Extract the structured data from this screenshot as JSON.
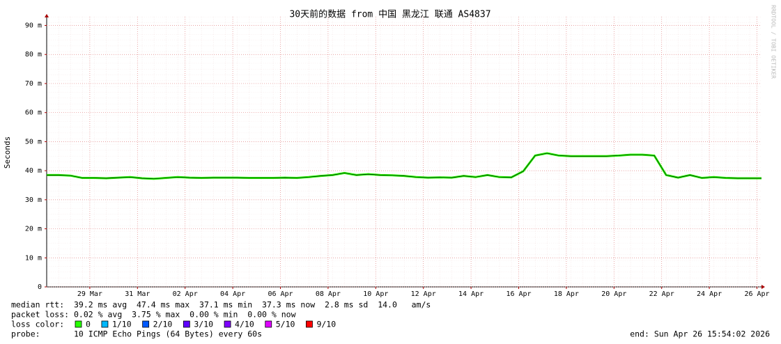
{
  "chart_data": {
    "type": "line",
    "title": "30天前的数据 from 中国 黑龙江 联通 AS4837",
    "y_label": "Seconds",
    "watermark": "RRDTOOL / TOBI OETIKER",
    "xlim": [
      0,
      30
    ],
    "xticks": [
      {
        "value": 1.81,
        "label": "29 Mar"
      },
      {
        "value": 3.81,
        "label": "31 Mar"
      },
      {
        "value": 5.81,
        "label": "02 Apr"
      },
      {
        "value": 7.81,
        "label": "04 Apr"
      },
      {
        "value": 9.81,
        "label": "06 Apr"
      },
      {
        "value": 11.81,
        "label": "08 Apr"
      },
      {
        "value": 13.81,
        "label": "10 Apr"
      },
      {
        "value": 15.81,
        "label": "12 Apr"
      },
      {
        "value": 17.81,
        "label": "14 Apr"
      },
      {
        "value": 19.81,
        "label": "16 Apr"
      },
      {
        "value": 21.81,
        "label": "18 Apr"
      },
      {
        "value": 23.81,
        "label": "20 Apr"
      },
      {
        "value": 25.81,
        "label": "22 Apr"
      },
      {
        "value": 27.81,
        "label": "24 Apr"
      },
      {
        "value": 29.81,
        "label": "26 Apr"
      }
    ],
    "ylim": [
      0,
      0.093
    ],
    "yticks": [
      0,
      {
        "value": 0.01,
        "label": "10 m"
      },
      {
        "value": 0.02,
        "label": "20 m"
      },
      {
        "value": 0.03,
        "label": "30 m"
      },
      {
        "value": 0.04,
        "label": "40 m"
      },
      {
        "value": 0.05,
        "label": "50 m"
      },
      {
        "value": 0.06,
        "label": "60 m"
      },
      {
        "value": 0.07,
        "label": "70 m"
      },
      {
        "value": 0.08,
        "label": "80 m"
      },
      {
        "value": 0.09,
        "label": "90 m"
      }
    ],
    "grid": true,
    "x": [
      0,
      0.5,
      1,
      1.5,
      2,
      2.5,
      3,
      3.5,
      4,
      4.5,
      5,
      5.5,
      6,
      6.5,
      7,
      7.5,
      8,
      8.5,
      9,
      9.5,
      10,
      10.5,
      11,
      11.5,
      12,
      12.5,
      13,
      13.5,
      14,
      14.5,
      15,
      15.5,
      16,
      16.5,
      17,
      17.5,
      18,
      18.5,
      19,
      19.5,
      20,
      20.5,
      21,
      21.5,
      22,
      22.5,
      23,
      23.5,
      24,
      24.5,
      25,
      25.5,
      26,
      26.5,
      27,
      27.5,
      28,
      28.5,
      29,
      29.5,
      30
    ],
    "series": [
      {
        "color": "#26ff00",
        "values": [
          0.0385,
          0.0385,
          0.0383,
          0.0375,
          0.0375,
          0.0374,
          0.0376,
          0.0378,
          0.0374,
          0.0372,
          0.0375,
          0.0378,
          0.0376,
          0.0375,
          0.0376,
          0.0376,
          0.0376,
          0.0375,
          0.0375,
          0.0375,
          0.0376,
          0.0375,
          0.0378,
          0.0382,
          0.0385,
          0.0392,
          0.0385,
          0.0388,
          0.0385,
          0.0384,
          0.0382,
          0.0378,
          0.0376,
          0.0377,
          0.0376,
          0.0382,
          0.0378,
          0.0385,
          0.0378,
          0.0377,
          0.0398,
          0.0452,
          0.046,
          0.0452,
          0.045,
          0.045,
          0.045,
          0.045,
          0.0452,
          0.0455,
          0.0455,
          0.0452,
          0.0385,
          0.0376,
          0.0385,
          0.0375,
          0.0378,
          0.0375,
          0.0374,
          0.0374,
          0.0374
        ]
      }
    ],
    "median_rtt": "median rtt:  39.2 ms avg  47.4 ms max  37.1 ms min  37.3 ms now  2.8 ms sd  14.0   am/s",
    "packet_loss": "packet loss: 0.02 % avg  3.75 % max  0.00 % min  0.00 % now",
    "loss_color_label": "loss color:",
    "loss_colors": [
      {
        "label": "0",
        "color": "#26ff00"
      },
      {
        "label": "1/10",
        "color": "#00b8ff"
      },
      {
        "label": "2/10",
        "color": "#0059ff"
      },
      {
        "label": "3/10",
        "color": "#5e00ff"
      },
      {
        "label": "4/10",
        "color": "#7e00ff"
      },
      {
        "label": "5/10",
        "color": "#dd00ff"
      },
      {
        "label": "9/10",
        "color": "#ff0000"
      }
    ],
    "probe": "probe:       10 ICMP Echo Pings (64 Bytes) every 60s",
    "end": "end: Sun Apr 26 15:54:02 2026"
  }
}
